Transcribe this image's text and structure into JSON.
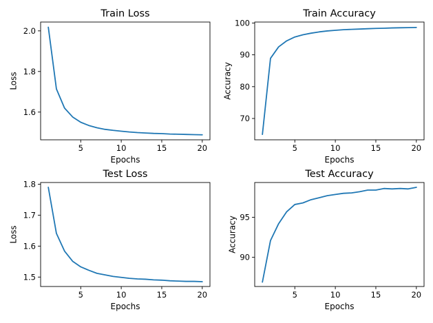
{
  "chart_data": [
    {
      "type": "line",
      "title": "Train Loss",
      "xlabel": "Epochs",
      "ylabel": "Loss",
      "xlim": [
        0.05,
        20.95
      ],
      "ylim": [
        1.4635,
        2.0435
      ],
      "xticks": [
        5,
        10,
        15,
        20
      ],
      "yticks": [
        1.6,
        1.8,
        2.0
      ],
      "ytick_labels": [
        "1.6",
        "1.8",
        "2.0"
      ],
      "color": "#1f77b4",
      "grid": false,
      "x": [
        1,
        2,
        3,
        4,
        5,
        6,
        7,
        8,
        9,
        10,
        11,
        12,
        13,
        14,
        15,
        16,
        17,
        18,
        19,
        20
      ],
      "y": [
        2.018,
        1.714,
        1.62,
        1.576,
        1.55,
        1.534,
        1.523,
        1.515,
        1.51,
        1.506,
        1.502,
        1.499,
        1.497,
        1.495,
        1.494,
        1.492,
        1.491,
        1.49,
        1.489,
        1.488
      ]
    },
    {
      "type": "line",
      "title": "Train Accuracy",
      "xlabel": "Epochs",
      "ylabel": "Accuracy",
      "xlim": [
        0.05,
        20.95
      ],
      "ylim": [
        63.3,
        100.3
      ],
      "xticks": [
        5,
        10,
        15,
        20
      ],
      "yticks": [
        70,
        80,
        90,
        100
      ],
      "ytick_labels": [
        "70",
        "80",
        "90",
        "100"
      ],
      "color": "#1f77b4",
      "grid": false,
      "x": [
        1,
        2,
        3,
        4,
        5,
        6,
        7,
        8,
        9,
        10,
        11,
        12,
        13,
        14,
        15,
        16,
        17,
        18,
        19,
        20
      ],
      "y": [
        65.0,
        88.9,
        92.5,
        94.4,
        95.6,
        96.3,
        96.8,
        97.2,
        97.5,
        97.7,
        97.9,
        98.0,
        98.1,
        98.2,
        98.3,
        98.35,
        98.45,
        98.5,
        98.55,
        98.6
      ]
    },
    {
      "type": "line",
      "title": "Test Loss",
      "xlabel": "Epochs",
      "ylabel": "Loss",
      "xlim": [
        0.05,
        20.95
      ],
      "ylim": [
        1.4695,
        1.8055
      ],
      "xticks": [
        5,
        10,
        15,
        20
      ],
      "yticks": [
        1.5,
        1.6,
        1.7,
        1.8
      ],
      "ytick_labels": [
        "1.5",
        "1.6",
        "1.7",
        "1.8"
      ],
      "color": "#1f77b4",
      "grid": false,
      "x": [
        1,
        2,
        3,
        4,
        5,
        6,
        7,
        8,
        9,
        10,
        11,
        12,
        13,
        14,
        15,
        16,
        17,
        18,
        19,
        20
      ],
      "y": [
        1.79,
        1.641,
        1.584,
        1.551,
        1.533,
        1.522,
        1.512,
        1.507,
        1.502,
        1.499,
        1.496,
        1.494,
        1.493,
        1.491,
        1.49,
        1.488,
        1.487,
        1.486,
        1.486,
        1.485
      ]
    },
    {
      "type": "line",
      "title": "Test Accuracy",
      "xlabel": "Epochs",
      "ylabel": "Accuracy",
      "xlim": [
        0.05,
        20.95
      ],
      "ylim": [
        86.35,
        99.35
      ],
      "xticks": [
        5,
        10,
        15,
        20
      ],
      "yticks": [
        90,
        95
      ],
      "ytick_labels": [
        "90",
        "95"
      ],
      "color": "#1f77b4",
      "grid": false,
      "x": [
        1,
        2,
        3,
        4,
        5,
        6,
        7,
        8,
        9,
        10,
        11,
        12,
        13,
        14,
        15,
        16,
        17,
        18,
        19,
        20
      ],
      "y": [
        86.9,
        92.1,
        94.2,
        95.7,
        96.6,
        96.8,
        97.2,
        97.45,
        97.7,
        97.85,
        98.0,
        98.05,
        98.2,
        98.4,
        98.4,
        98.6,
        98.55,
        98.6,
        98.55,
        98.75
      ]
    }
  ]
}
